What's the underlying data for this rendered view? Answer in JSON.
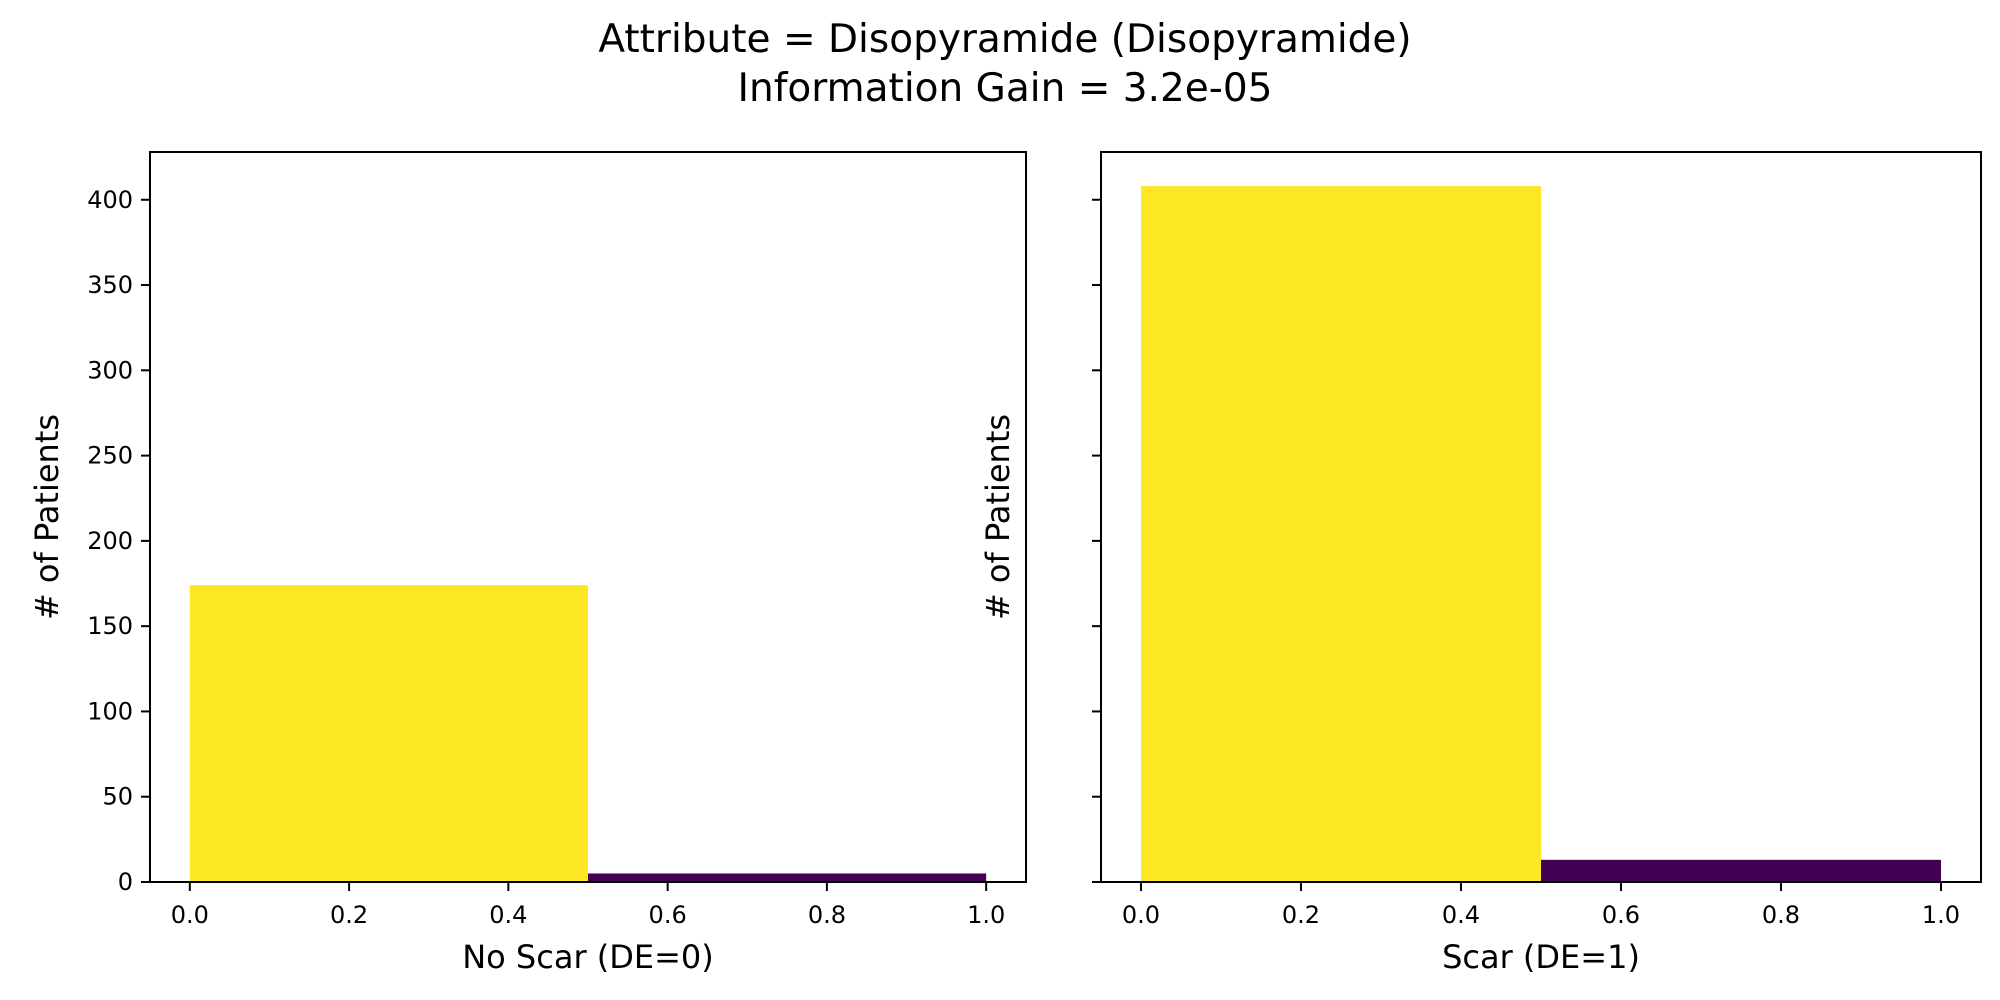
{
  "figure": {
    "title_line1": "Attribute = Disopyramide (Disopyramide)",
    "title_line2": "Information Gain = 3.2e-05"
  },
  "chart_data": [
    {
      "type": "bar",
      "xlabel": "No Scar (DE=0)",
      "ylabel": "# of Patients",
      "xlim": [
        -0.05,
        1.05
      ],
      "ylim": [
        0,
        428
      ],
      "xticks": [
        0.0,
        0.2,
        0.4,
        0.6,
        0.8,
        1.0
      ],
      "xtick_labels": [
        "0.0",
        "0.2",
        "0.4",
        "0.6",
        "0.8",
        "1.0"
      ],
      "yticks": [
        0,
        50,
        100,
        150,
        200,
        250,
        300,
        350,
        400
      ],
      "ytick_labels": [
        "0",
        "50",
        "100",
        "150",
        "200",
        "250",
        "300",
        "350",
        "400"
      ],
      "show_ytick_labels": true,
      "grid": false,
      "bars": [
        {
          "x_start": 0.0,
          "x_end": 0.5,
          "value": 174,
          "color": "#fde725"
        },
        {
          "x_start": 0.5,
          "x_end": 1.0,
          "value": 5,
          "color": "#440154"
        }
      ]
    },
    {
      "type": "bar",
      "xlabel": "Scar (DE=1)",
      "ylabel": "# of Patients",
      "xlim": [
        -0.05,
        1.05
      ],
      "ylim": [
        0,
        428
      ],
      "xticks": [
        0.0,
        0.2,
        0.4,
        0.6,
        0.8,
        1.0
      ],
      "xtick_labels": [
        "0.0",
        "0.2",
        "0.4",
        "0.6",
        "0.8",
        "1.0"
      ],
      "yticks": [
        0,
        50,
        100,
        150,
        200,
        250,
        300,
        350,
        400
      ],
      "ytick_labels": [
        "0",
        "50",
        "100",
        "150",
        "200",
        "250",
        "300",
        "350",
        "400"
      ],
      "show_ytick_labels": false,
      "grid": false,
      "bars": [
        {
          "x_start": 0.0,
          "x_end": 0.5,
          "value": 408,
          "color": "#fde725"
        },
        {
          "x_start": 0.5,
          "x_end": 1.0,
          "value": 13,
          "color": "#440154"
        }
      ]
    }
  ]
}
